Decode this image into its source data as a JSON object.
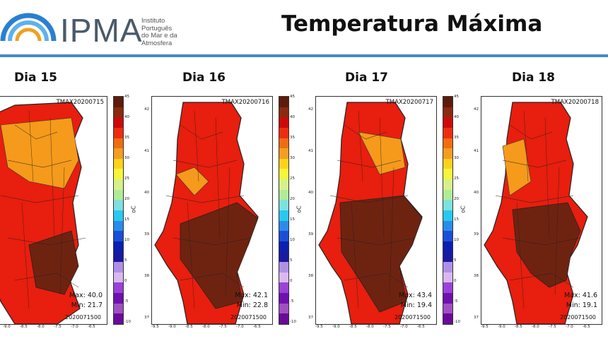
{
  "header": {
    "logo_name": "IPMA",
    "logo_subtitle": [
      "Instituto",
      "Português",
      "do Mar e da",
      "Atmosfera"
    ],
    "title": "Temperatura Máxima"
  },
  "colorbar": {
    "unit": "oC",
    "ticks": [
      "45",
      "40",
      "35",
      "30",
      "25",
      "20",
      "15",
      "10",
      "5",
      "0",
      "-5",
      "-10"
    ],
    "colors": [
      "#5e1b0b",
      "#8a2a10",
      "#cc0a0a",
      "#ee2d10",
      "#f06c12",
      "#f59d20",
      "#ffd21a",
      "#f5f53a",
      "#d6f08a",
      "#b0ec96",
      "#7fe0e0",
      "#28c8f0",
      "#2a8ce8",
      "#1a4ed8",
      "#0a20b0",
      "#1a1aa0",
      "#b090e6",
      "#d9b8f2",
      "#9a42d8",
      "#7010b0",
      "#a050c0",
      "#6a0a9a"
    ]
  },
  "axes": {
    "y_ticks": [
      "42",
      "41",
      "40",
      "39",
      "38",
      "37"
    ],
    "x_ticks": [
      "-9.5",
      "-9.0",
      "-8.5",
      "-8.0",
      "-7.5",
      "-7.0",
      "-6.5"
    ]
  },
  "panels": [
    {
      "day": "Dia 15",
      "stamp": "TMAX20200715",
      "max": "Max: 40.0",
      "min": "Min: 21.7",
      "run": "2020071500"
    },
    {
      "day": "Dia 16",
      "stamp": "TMAX20200716",
      "max": "Max: 42.1",
      "min": "Min: 22.8",
      "run": "2020071500"
    },
    {
      "day": "Dia 17",
      "stamp": "TMAX20200717",
      "max": "Max: 43.4",
      "min": "Min: 19.4",
      "run": "2020071500"
    },
    {
      "day": "Dia 18",
      "stamp": "TMAX20200718",
      "max": "Max: 41.6",
      "min": "Min: 19.1",
      "run": "2020071500"
    }
  ]
}
